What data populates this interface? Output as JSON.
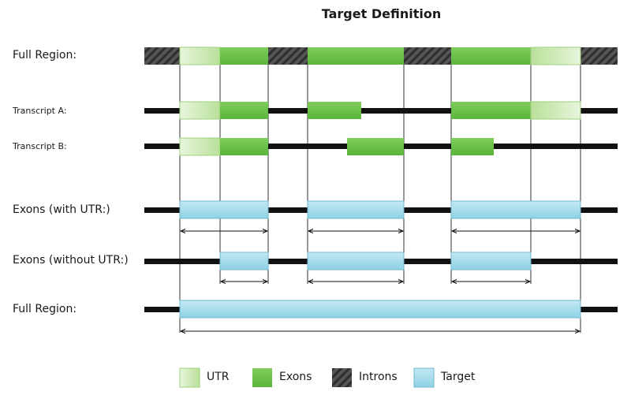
{
  "title": "Target Definition",
  "rows": {
    "full_region_top": "Full Region:",
    "transcript_a": "Transcript A:",
    "transcript_b": "Transcript B:",
    "exons_with_utr": "Exons (with UTR:)",
    "exons_without_utr": "Exons (without UTR:)",
    "full_region_bottom": "Full Region:"
  },
  "legend": {
    "utr": "UTR",
    "exons": "Exons",
    "introns": "Introns",
    "target": "Target"
  },
  "colors": {
    "utr": "#c5e6a8",
    "exon": "#6cc04a",
    "intron": "#4a4a4a",
    "target": "#a9dcea",
    "line": "#111111"
  }
}
